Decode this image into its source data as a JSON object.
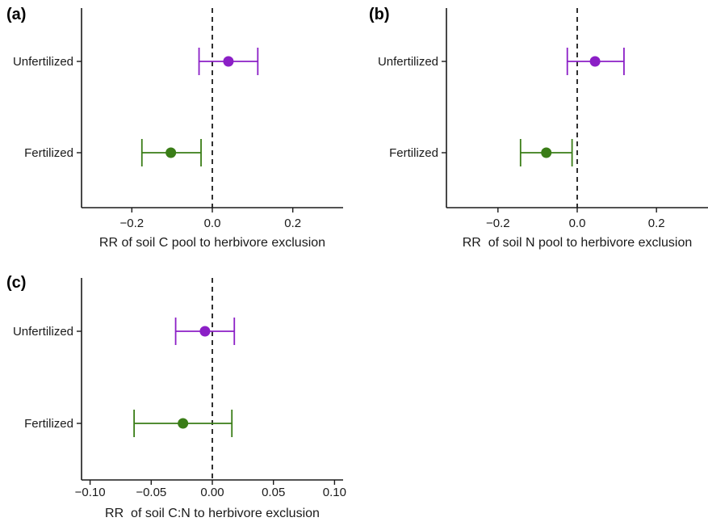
{
  "chart_data": [
    {
      "panel_label": "(a)",
      "type": "scatter",
      "orientation": "horizontal-error-bars",
      "categories": [
        "Unfertilized",
        "Fertilized"
      ],
      "points": [
        {
          "category": "Unfertilized",
          "estimate": 0.04,
          "lower": -0.033,
          "upper": 0.113,
          "color": "#8B1FC6"
        },
        {
          "category": "Fertilized",
          "estimate": -0.103,
          "lower": -0.175,
          "upper": -0.028,
          "color": "#3A7D17"
        }
      ],
      "xlabel": "RR of soil C pool to herbivore exclusion",
      "xlim": [
        -0.325,
        0.325
      ],
      "xticks": [
        -0.2,
        0.0,
        0.2
      ],
      "xtick_labels": [
        "−0.2",
        "0.0",
        "0.2"
      ],
      "reference_line": 0
    },
    {
      "panel_label": "(b)",
      "type": "scatter",
      "orientation": "horizontal-error-bars",
      "categories": [
        "Unfertilized",
        "Fertilized"
      ],
      "points": [
        {
          "category": "Unfertilized",
          "estimate": 0.045,
          "lower": -0.025,
          "upper": 0.118,
          "color": "#8B1FC6"
        },
        {
          "category": "Fertilized",
          "estimate": -0.078,
          "lower": -0.143,
          "upper": -0.013,
          "color": "#3A7D17"
        }
      ],
      "xlabel": "RR  of soil N pool to herbivore exclusion",
      "xlim": [
        -0.33,
        0.33
      ],
      "xticks": [
        -0.2,
        0.0,
        0.2
      ],
      "xtick_labels": [
        "−0.2",
        "0.0",
        "0.2"
      ],
      "reference_line": 0
    },
    {
      "panel_label": "(c)",
      "type": "scatter",
      "orientation": "horizontal-error-bars",
      "categories": [
        "Unfertilized",
        "Fertilized"
      ],
      "points": [
        {
          "category": "Unfertilized",
          "estimate": -0.006,
          "lower": -0.03,
          "upper": 0.018,
          "color": "#8B1FC6"
        },
        {
          "category": "Fertilized",
          "estimate": -0.024,
          "lower": -0.064,
          "upper": 0.016,
          "color": "#3A7D17"
        }
      ],
      "xlabel": "RR  of soil C:N to herbivore exclusion",
      "xlim": [
        -0.107,
        0.107
      ],
      "xticks": [
        -0.1,
        -0.05,
        0.0,
        0.05,
        0.1
      ],
      "xtick_labels": [
        "−0.10",
        "−0.05",
        "0.00",
        "0.05",
        "0.10"
      ],
      "reference_line": 0
    }
  ]
}
